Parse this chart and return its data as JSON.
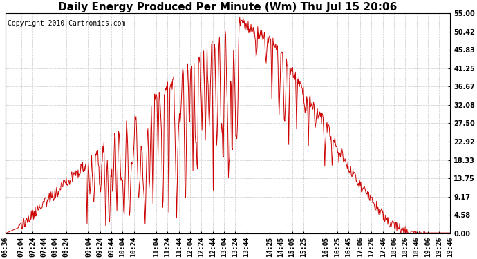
{
  "title": "Daily Energy Produced Per Minute (Wm) Thu Jul 15 20:06",
  "copyright": "Copyright 2010 Cartronics.com",
  "line_color": "#cc0000",
  "background_color": "#ffffff",
  "plot_bg_color": "#ffffff",
  "ymin": 0.0,
  "ymax": 55.0,
  "yticks": [
    0.0,
    4.58,
    9.17,
    13.75,
    18.33,
    22.92,
    27.5,
    32.08,
    36.67,
    41.25,
    45.83,
    50.42,
    55.0
  ],
  "ytick_labels": [
    "0.00",
    "4.58",
    "9.17",
    "13.75",
    "18.33",
    "22.92",
    "27.50",
    "32.08",
    "36.67",
    "41.25",
    "45.83",
    "50.42",
    "55.00"
  ],
  "xtick_labels": [
    "06:36",
    "07:04",
    "07:24",
    "07:44",
    "08:04",
    "08:24",
    "09:04",
    "09:24",
    "09:44",
    "10:04",
    "10:24",
    "11:04",
    "11:24",
    "11:44",
    "12:04",
    "12:24",
    "12:44",
    "13:04",
    "13:24",
    "13:44",
    "14:25",
    "14:45",
    "15:05",
    "15:25",
    "16:05",
    "16:25",
    "16:45",
    "17:06",
    "17:26",
    "17:46",
    "18:06",
    "18:26",
    "18:46",
    "19:06",
    "19:26",
    "19:46"
  ],
  "title_fontsize": 11,
  "copyright_fontsize": 7,
  "tick_fontsize": 7,
  "grid_color": "#bbbbbb",
  "grid_style": "--",
  "grid_alpha": 0.8,
  "grid_linewidth": 0.5
}
